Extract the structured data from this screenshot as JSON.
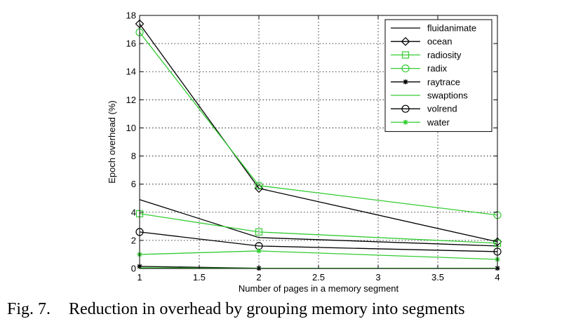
{
  "chart_data": {
    "type": "line",
    "title": "",
    "xlabel": "Number of pages in a memory segment",
    "ylabel": "Epoch overhead (%)",
    "x": [
      1,
      2,
      4
    ],
    "xlim": [
      1,
      4
    ],
    "ylim": [
      0,
      18
    ],
    "xticks": [
      "1",
      "1.5",
      "2",
      "2.5",
      "3",
      "3.5",
      "4"
    ],
    "yticks": [
      "0",
      "2",
      "4",
      "6",
      "8",
      "10",
      "12",
      "14",
      "16",
      "18"
    ],
    "grid": true,
    "legend_position": "top-right",
    "series": [
      {
        "name": "fluidanimate",
        "values": [
          4.9,
          2.2,
          1.6
        ],
        "color": "#000000",
        "marker": "none"
      },
      {
        "name": "ocean",
        "values": [
          17.4,
          5.7,
          1.9
        ],
        "color": "#000000",
        "marker": "diamond"
      },
      {
        "name": "radiosity",
        "values": [
          3.9,
          2.6,
          1.8
        ],
        "color": "#33cc33",
        "marker": "square"
      },
      {
        "name": "radix",
        "values": [
          16.8,
          5.9,
          3.8
        ],
        "color": "#33cc33",
        "marker": "circle"
      },
      {
        "name": "raytrace",
        "values": [
          0.15,
          0.02,
          0.02
        ],
        "color": "#000000",
        "marker": "star"
      },
      {
        "name": "swaptions",
        "values": [
          0.05,
          0.02,
          0.02
        ],
        "color": "#33cc33",
        "marker": "none"
      },
      {
        "name": "volrend",
        "values": [
          2.6,
          1.6,
          1.2
        ],
        "color": "#000000",
        "marker": "circle"
      },
      {
        "name": "water",
        "values": [
          1.0,
          1.25,
          0.65
        ],
        "color": "#33cc33",
        "marker": "star"
      }
    ]
  },
  "caption": {
    "fig_num": "Fig. 7.",
    "text": "Reduction in overhead by grouping memory into segments"
  }
}
